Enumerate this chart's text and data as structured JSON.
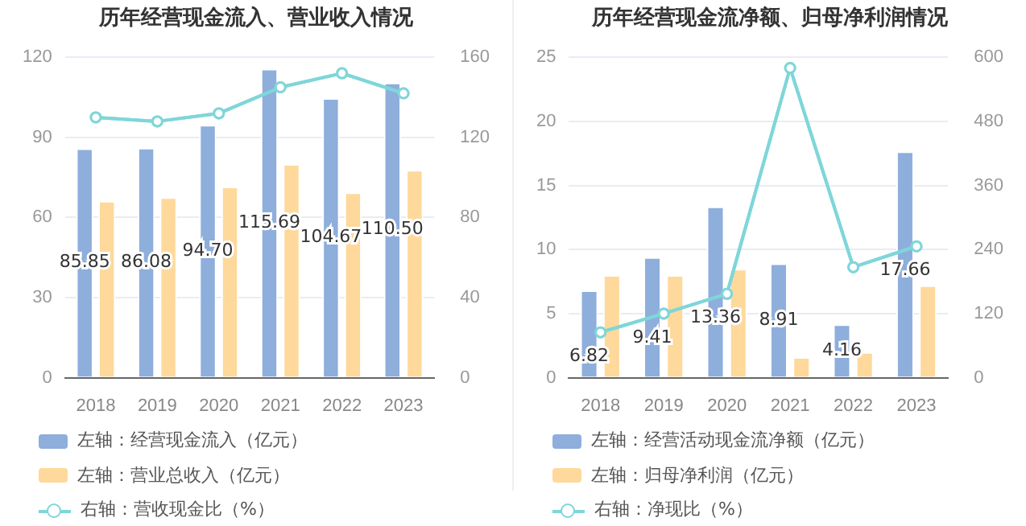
{
  "chart_data": [
    {
      "type": "bar",
      "title": "历年经营现金流入、营业收入情况",
      "categories": [
        "2018",
        "2019",
        "2020",
        "2021",
        "2022",
        "2023"
      ],
      "series": [
        {
          "name": "左轴：经营现金流入（亿元）",
          "color": "#8eaedc",
          "values": [
            85.85,
            86.08,
            94.7,
            115.69,
            104.67,
            110.5
          ],
          "value_labels": [
            "85.85",
            "86.08",
            "94.70",
            "115.69",
            "104.67",
            "110.50"
          ]
        },
        {
          "name": "左轴：营业总收入（亿元）",
          "color": "#fed99b",
          "values": [
            66.2,
            67.6,
            71.6,
            80.0,
            69.4,
            77.8
          ]
        },
        {
          "name": "右轴：营收现金比（%）",
          "type": "line",
          "axis": "y2",
          "color": "#7fd6d9",
          "values": [
            130,
            128,
            132,
            145,
            152,
            142
          ]
        }
      ],
      "ylim": [
        0,
        120
      ],
      "yticks": [
        0,
        30,
        60,
        90,
        120
      ],
      "y2lim": [
        0,
        160
      ],
      "y2ticks": [
        0,
        40,
        80,
        120,
        160
      ],
      "grid": "y",
      "legend": "bottom",
      "marker": "circle"
    },
    {
      "type": "bar",
      "title": "历年经营现金流净额、归母净利润情况",
      "categories": [
        "2018",
        "2019",
        "2020",
        "2021",
        "2022",
        "2023"
      ],
      "series": [
        {
          "name": "左轴：经营活动现金流净额（亿元）",
          "color": "#8eaedc",
          "values": [
            6.82,
            9.41,
            13.36,
            8.91,
            4.16,
            17.66
          ],
          "value_labels": [
            "6.82",
            "9.41",
            "13.36",
            "8.91",
            "4.16",
            "17.66"
          ]
        },
        {
          "name": "左轴：归母净利润（亿元）",
          "color": "#fed99b",
          "values": [
            8.0,
            8.0,
            8.5,
            1.6,
            2.0,
            7.2
          ]
        },
        {
          "name": "右轴：净现比（%）",
          "type": "line",
          "axis": "y2",
          "color": "#7fd6d9",
          "values": [
            85,
            120,
            157,
            580,
            207,
            246
          ]
        }
      ],
      "ylim": [
        0,
        25
      ],
      "yticks": [
        0,
        5,
        10,
        15,
        20,
        25
      ],
      "y2lim": [
        0,
        600
      ],
      "y2ticks": [
        0,
        120,
        240,
        360,
        480,
        600
      ],
      "grid": "y",
      "legend": "bottom",
      "marker": "circle"
    }
  ]
}
